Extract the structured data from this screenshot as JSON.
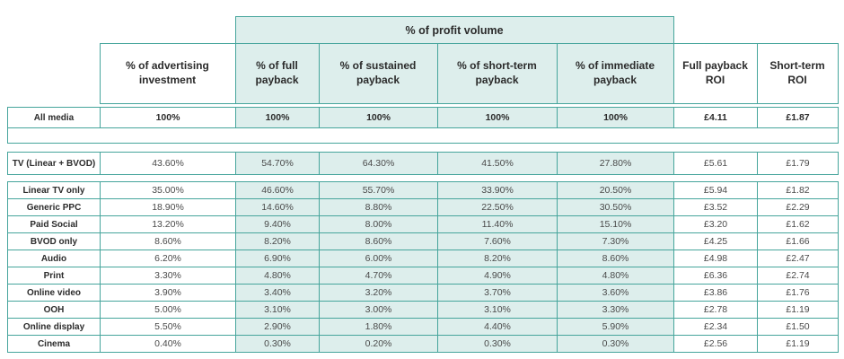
{
  "colors": {
    "border": "#46a59c",
    "fill": "#ddeeec"
  },
  "chart_data": {
    "type": "table",
    "group_header": "% of profit volume",
    "column_headers": [
      "% of advertising investment",
      "% of full payback",
      "% of sustained payback",
      "% of short-term payback",
      "% of immediate payback",
      "Full payback ROI",
      "Short-term ROI"
    ],
    "total_row": {
      "label": "All media",
      "values": [
        "100%",
        "100%",
        "100%",
        "100%",
        "100%",
        "£4.11",
        "£1.87"
      ]
    },
    "tv_row": {
      "label": "TV (Linear + BVOD)",
      "values": [
        "43.60%",
        "54.70%",
        "64.30%",
        "41.50%",
        "27.80%",
        "£5.61",
        "£1.79"
      ]
    },
    "rows": [
      {
        "label": "Linear TV only",
        "values": [
          "35.00%",
          "46.60%",
          "55.70%",
          "33.90%",
          "20.50%",
          "£5.94",
          "£1.82"
        ]
      },
      {
        "label": "Generic PPC",
        "values": [
          "18.90%",
          "14.60%",
          "8.80%",
          "22.50%",
          "30.50%",
          "£3.52",
          "£2.29"
        ]
      },
      {
        "label": "Paid Social",
        "values": [
          "13.20%",
          "9.40%",
          "8.00%",
          "11.40%",
          "15.10%",
          "£3.20",
          "£1.62"
        ]
      },
      {
        "label": "BVOD only",
        "values": [
          "8.60%",
          "8.20%",
          "8.60%",
          "7.60%",
          "7.30%",
          "£4.25",
          "£1.66"
        ]
      },
      {
        "label": "Audio",
        "values": [
          "6.20%",
          "6.90%",
          "6.00%",
          "8.20%",
          "8.60%",
          "£4.98",
          "£2.47"
        ]
      },
      {
        "label": "Print",
        "values": [
          "3.30%",
          "4.80%",
          "4.70%",
          "4.90%",
          "4.80%",
          "£6.36",
          "£2.74"
        ]
      },
      {
        "label": "Online video",
        "values": [
          "3.90%",
          "3.40%",
          "3.20%",
          "3.70%",
          "3.60%",
          "£3.86",
          "£1.76"
        ]
      },
      {
        "label": "OOH",
        "values": [
          "5.00%",
          "3.10%",
          "3.00%",
          "3.10%",
          "3.30%",
          "£2.78",
          "£1.19"
        ]
      },
      {
        "label": "Online display",
        "values": [
          "5.50%",
          "2.90%",
          "1.80%",
          "4.40%",
          "5.90%",
          "£2.34",
          "£1.50"
        ]
      },
      {
        "label": "Cinema",
        "values": [
          "0.40%",
          "0.30%",
          "0.20%",
          "0.30%",
          "0.30%",
          "£2.56",
          "£1.19"
        ]
      }
    ]
  }
}
